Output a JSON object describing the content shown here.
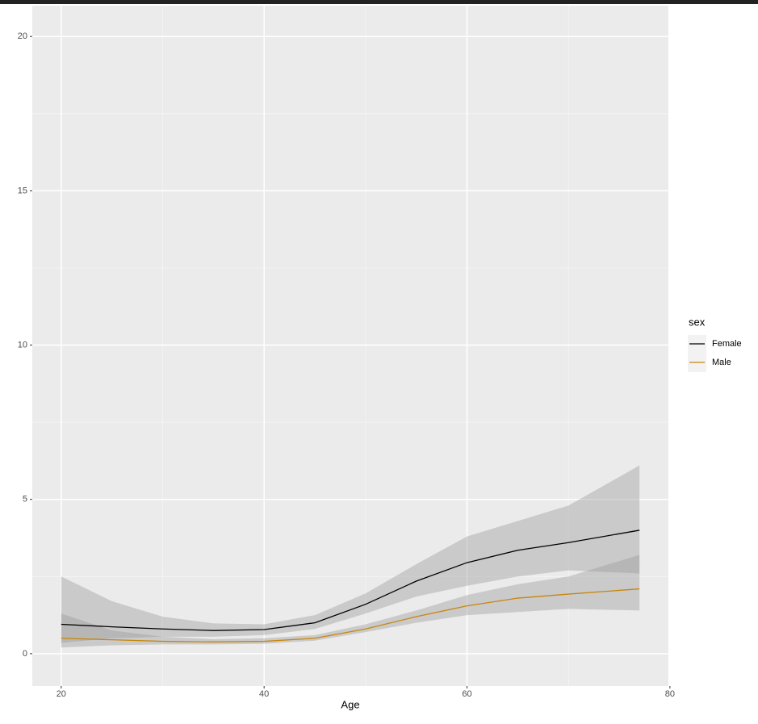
{
  "chart_data": {
    "type": "line",
    "x_label": "Age",
    "x": [
      20,
      25,
      30,
      35,
      40,
      45,
      50,
      55,
      60,
      65,
      70,
      77
    ],
    "series": [
      {
        "name": "Female",
        "color": "#000000",
        "values": [
          0.95,
          0.87,
          0.8,
          0.75,
          0.78,
          1.0,
          1.6,
          2.35,
          2.95,
          3.35,
          3.6,
          4.0
        ],
        "lower": [
          0.35,
          0.5,
          0.55,
          0.55,
          0.6,
          0.8,
          1.3,
          1.85,
          2.2,
          2.5,
          2.7,
          2.6
        ],
        "upper": [
          2.5,
          1.7,
          1.2,
          0.98,
          0.95,
          1.25,
          1.95,
          2.9,
          3.8,
          4.3,
          4.8,
          6.1
        ]
      },
      {
        "name": "Male",
        "color": "#c8860a",
        "values": [
          0.5,
          0.45,
          0.4,
          0.38,
          0.4,
          0.5,
          0.8,
          1.2,
          1.55,
          1.8,
          1.93,
          2.1
        ],
        "lower": [
          0.2,
          0.27,
          0.3,
          0.3,
          0.32,
          0.42,
          0.7,
          1.0,
          1.25,
          1.35,
          1.45,
          1.4
        ],
        "upper": [
          1.3,
          0.75,
          0.55,
          0.47,
          0.5,
          0.6,
          0.95,
          1.4,
          1.9,
          2.25,
          2.5,
          3.2
        ]
      }
    ],
    "band_color": "#999999",
    "legend_title": "sex",
    "legend": "right",
    "xlim": [
      17.15,
      79.85
    ],
    "xticks": [
      20,
      40,
      60,
      80
    ],
    "xminorticks": [
      30,
      50,
      70
    ],
    "ylim": [
      -1.05,
      21
    ],
    "yticks": [
      0,
      5,
      10,
      15,
      20
    ],
    "yminorticks": [
      2.5,
      7.5,
      12.5,
      17.5
    ],
    "grid": true
  }
}
